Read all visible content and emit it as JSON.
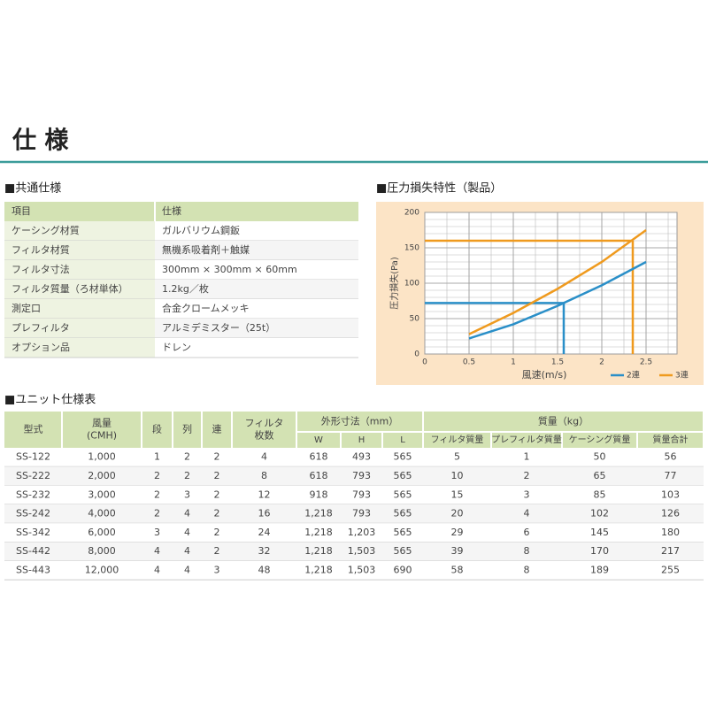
{
  "header": {
    "title": "仕 様"
  },
  "common_spec": {
    "title": "■共通仕様",
    "header": [
      "項目",
      "仕様"
    ],
    "rows": [
      [
        "ケーシング材質",
        "ガルバリウム鋼鈑"
      ],
      [
        "フィルタ材質",
        "無機系吸着剤＋触媒"
      ],
      [
        "フィルタ寸法",
        "300mm × 300mm × 60mm"
      ],
      [
        "フィルタ質量（ろ材単体）",
        "1.2kg／枚"
      ],
      [
        "測定口",
        "合金クロームメッキ"
      ],
      [
        "プレフィルタ",
        "アルミデミスター（25t）"
      ],
      [
        "オプション品",
        "ドレン"
      ]
    ]
  },
  "chart_data": {
    "type": "line",
    "title": "■圧力損失特性（製品）",
    "x_label": "風速(m/s)",
    "y_label": "圧力損失(Pa)",
    "x": [
      0.5,
      1,
      1.5,
      2,
      2.5
    ],
    "series": [
      {
        "name": "2連",
        "color": "#2a8fc8",
        "values": [
          22,
          42,
          68,
          97,
          130
        ]
      },
      {
        "name": "3連",
        "color": "#ef9a1e",
        "values": [
          28,
          58,
          92,
          130,
          175
        ]
      }
    ],
    "guides": [
      {
        "x": 1.57,
        "y": 72,
        "color": "#2a8fc8"
      },
      {
        "x": 2.35,
        "y": 160,
        "color": "#ef9a1e"
      }
    ],
    "xlim": [
      0,
      2.85
    ],
    "ylim": [
      0,
      200
    ],
    "xticks": [
      0,
      0.5,
      1,
      1.5,
      2,
      2.5
    ],
    "yticks": [
      0,
      50,
      100,
      150,
      200
    ],
    "minor_grid": {
      "x": 0.25,
      "y": 10
    },
    "grid": true
  },
  "unit_spec": {
    "title": "■ユニット仕様表",
    "header_single": [
      [
        "型式"
      ],
      [
        "風量",
        "(CMH)"
      ],
      [
        "段"
      ],
      [
        "列"
      ],
      [
        "連"
      ],
      [
        "フィルタ",
        "枚数"
      ]
    ],
    "header_groups": [
      {
        "label": "外形寸法（mm）",
        "sub": [
          "W",
          "H",
          "L"
        ]
      },
      {
        "label": "質量（kg）",
        "sub": [
          "フィルタ質量",
          "プレフィルタ質量",
          "ケーシング質量",
          "質量合計"
        ]
      }
    ],
    "rows": [
      [
        "SS-122",
        "1,000",
        "1",
        "2",
        "2",
        "4",
        "618",
        "493",
        "565",
        "5",
        "1",
        "50",
        "56"
      ],
      [
        "SS-222",
        "2,000",
        "2",
        "2",
        "2",
        "8",
        "618",
        "793",
        "565",
        "10",
        "2",
        "65",
        "77"
      ],
      [
        "SS-232",
        "3,000",
        "2",
        "3",
        "2",
        "12",
        "918",
        "793",
        "565",
        "15",
        "3",
        "85",
        "103"
      ],
      [
        "SS-242",
        "4,000",
        "2",
        "4",
        "2",
        "16",
        "1,218",
        "793",
        "565",
        "20",
        "4",
        "102",
        "126"
      ],
      [
        "SS-342",
        "6,000",
        "3",
        "4",
        "2",
        "24",
        "1,218",
        "1,203",
        "565",
        "29",
        "6",
        "145",
        "180"
      ],
      [
        "SS-442",
        "8,000",
        "4",
        "4",
        "2",
        "32",
        "1,218",
        "1,503",
        "565",
        "39",
        "8",
        "170",
        "217"
      ],
      [
        "SS-443",
        "12,000",
        "4",
        "4",
        "3",
        "48",
        "1,218",
        "1,503",
        "690",
        "58",
        "8",
        "189",
        "255"
      ]
    ]
  }
}
